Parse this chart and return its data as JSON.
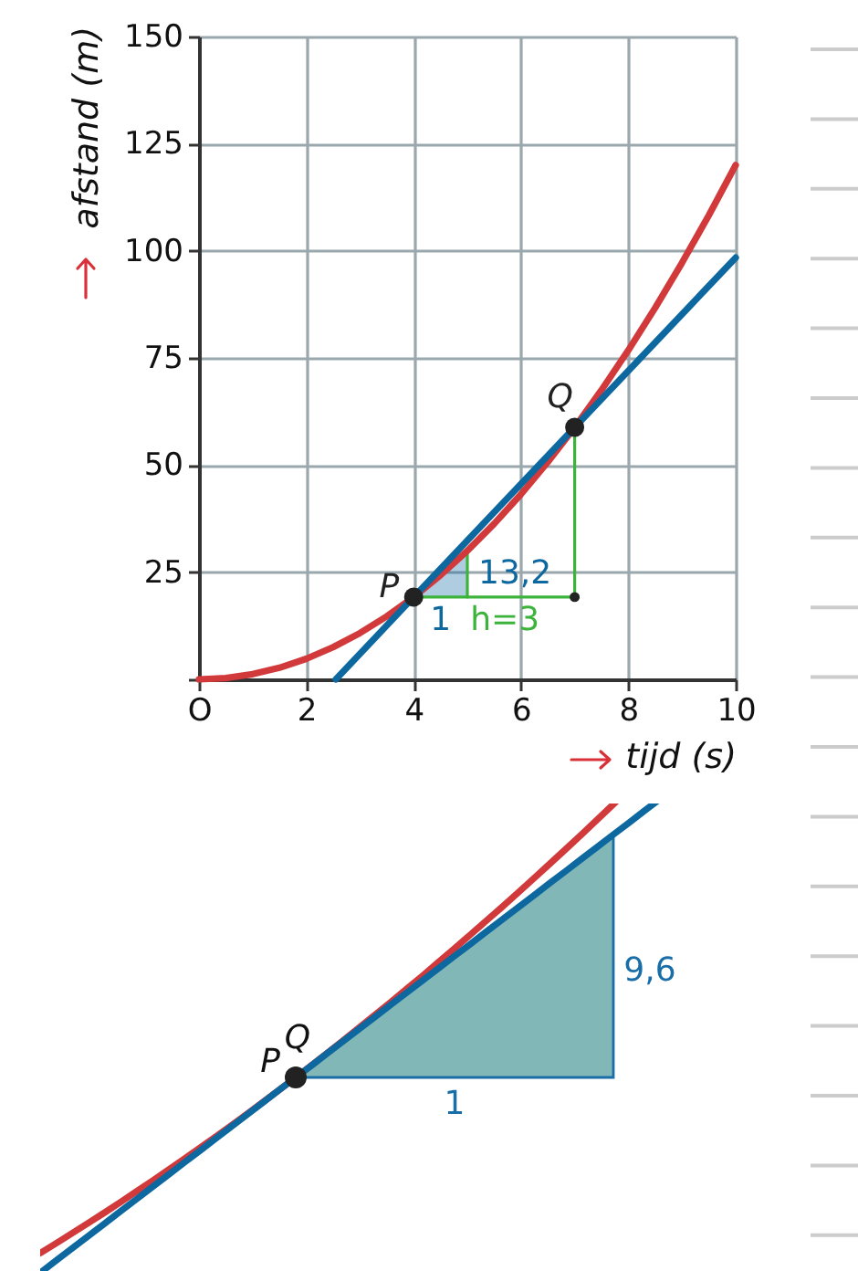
{
  "chart_data": {
    "type": "line",
    "xlabel": "tijd (s)",
    "ylabel": "afstand (m)",
    "xlim": [
      0,
      10
    ],
    "ylim": [
      0,
      150
    ],
    "xticks": [
      {
        "value": 0,
        "label": "O"
      },
      2,
      4,
      6,
      8,
      10
    ],
    "yticks": [
      {
        "value": 0,
        "label": null
      },
      25,
      50,
      75,
      100,
      125,
      150
    ],
    "grid": true,
    "series": [
      {
        "color": "#3cb43c",
        "x": [
          4,
          7
        ],
        "values": [
          19.2,
          19.2
        ]
      },
      {
        "color": "#3cb43c",
        "x": [
          5,
          5
        ],
        "values": [
          19.2,
          30
        ]
      },
      {
        "color": "#3cb43c",
        "x": [
          7,
          7
        ],
        "values": [
          19.2,
          58.8
        ]
      },
      {
        "color": "#d1393b",
        "x": [
          0,
          0.5,
          1,
          1.5,
          2,
          2.5,
          3,
          3.5,
          4,
          4.5,
          5,
          5.5,
          6,
          6.5,
          7,
          7.5,
          8,
          8.5,
          9,
          9.5,
          10
        ],
        "values": [
          0,
          0.3,
          1.2,
          2.7,
          4.8,
          7.5,
          10.8,
          14.7,
          19.2,
          24.3,
          30,
          36.3,
          43.2,
          50.7,
          58.8,
          67.5,
          76.8,
          86.7,
          97.2,
          108.3,
          120
        ]
      },
      {
        "color": "#0d68a0",
        "x": [
          2.55,
          4,
          4.5,
          5,
          10
        ],
        "values": [
          0,
          19.2,
          25.8,
          32.4,
          98.4
        ],
        "lower": [
          null,
          19.2,
          19.2,
          19.2,
          null
        ],
        "upper": [
          null,
          19.2,
          24.3,
          30,
          null
        ]
      },
      {
        "type": "scatter",
        "name": "P",
        "color": "#222222",
        "x": [
          4
        ],
        "values": [
          19.2
        ]
      },
      {
        "type": "scatter",
        "name": "Q",
        "color": "#222222",
        "x": [
          7
        ],
        "values": [
          58.8
        ]
      },
      {
        "type": "scatter",
        "color": "#222222",
        "x": [
          7
        ],
        "values": [
          19.2
        ]
      }
    ],
    "annotations": [
      {
        "text": "13,2",
        "x": 5,
        "y": 24.6
      },
      {
        "text": "1",
        "x": 4.5,
        "y": 19.2
      },
      {
        "text": "h=3",
        "x": 5.7,
        "y": 19.2
      },
      "P",
      "Q",
      "9,6",
      "1"
    ]
  }
}
